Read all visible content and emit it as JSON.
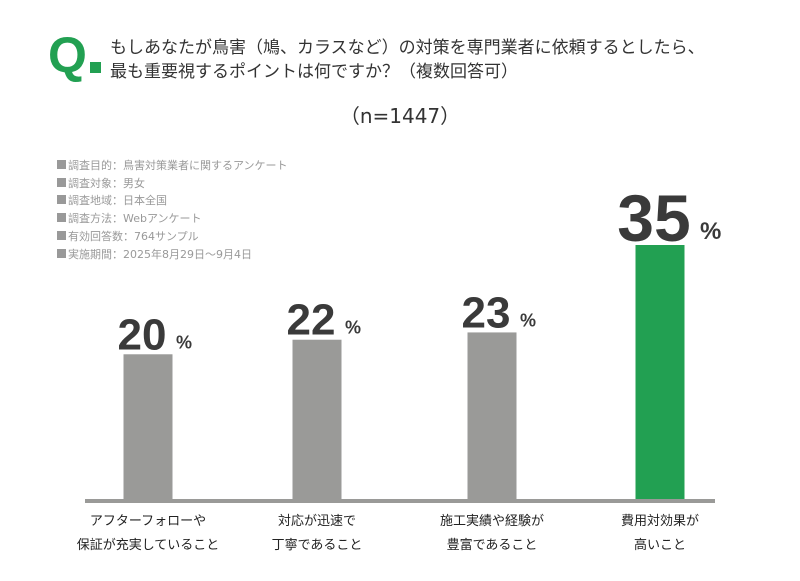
{
  "question": {
    "mark": "Q",
    "text_line1": "もしあなたが鳥害（鳩、カラスなど）の対策を専門業者に依頼するとしたら、",
    "text_line2": "最も重要視するポイントは何ですか？（複数回答可）",
    "sample": "（n=1447）"
  },
  "notes": [
    "調査目的：鳥害対策業者に関するアンケート",
    "調査対象：男女",
    "調査地域：日本全国",
    "調査方法：Webアンケート",
    "有効回答数：764サンプル",
    "実施期間：2025年8月29日〜9月4日"
  ],
  "colors": {
    "accent": "#22a052",
    "bar": "#9a9a98",
    "highlight": "#22a052",
    "axis": "#9a9a98",
    "label": "#3a3a3a"
  },
  "chart_data": {
    "type": "bar",
    "categories": [
      [
        "アフターフォローや",
        "保証が充実していること"
      ],
      [
        "対応が迅速で",
        "丁寧であること"
      ],
      [
        "施工実績や経験が",
        "豊富であること"
      ],
      [
        "費用対効果が",
        "高いこと"
      ]
    ],
    "values": [
      20,
      22,
      23,
      35
    ],
    "unit": "%",
    "highlight_index": 3,
    "ylim": [
      0,
      35
    ],
    "grid": false
  }
}
